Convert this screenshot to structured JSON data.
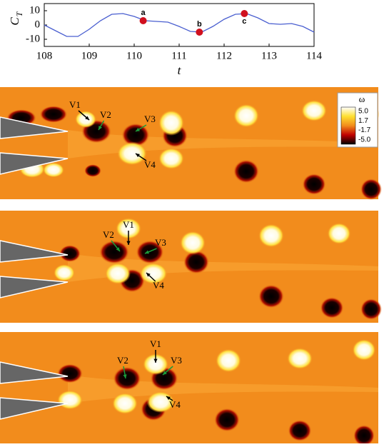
{
  "chart_data": {
    "type": "line",
    "ylabel": "C",
    "ylabel_subscript": "T",
    "xlabel": "t",
    "x": [
      108,
      108.25,
      108.5,
      108.75,
      109,
      109.25,
      109.5,
      109.75,
      110,
      110.25,
      110.5,
      110.75,
      111,
      111.25,
      111.5,
      111.75,
      112,
      112.25,
      112.5,
      112.75,
      113,
      113.25,
      113.5,
      113.75,
      114
    ],
    "values": [
      0,
      -4,
      -8,
      -8,
      -3,
      3,
      7.5,
      8,
      6,
      3,
      2.5,
      2,
      -1,
      -4.5,
      -5,
      -1,
      4,
      7.5,
      8,
      5,
      1,
      0.5,
      1,
      -1,
      -5
    ],
    "color": "#4a5fd0",
    "xlim": [
      108,
      114
    ],
    "ylim": [
      -15,
      15
    ],
    "xticks": [
      108,
      109,
      110,
      111,
      112,
      113,
      114
    ],
    "yticks": [
      -10,
      0,
      10
    ],
    "points": {
      "labels": [
        "a",
        "b",
        "c"
      ],
      "x": [
        110.2,
        111.45,
        112.45
      ],
      "values": [
        3,
        -5,
        8
      ],
      "color": "#d0101e"
    }
  },
  "colorbar": {
    "symbol": "ω",
    "labels": [
      "5.0",
      "1.7",
      "-1.7",
      "-5.0"
    ]
  },
  "panels": [
    {
      "labels": [
        "V1",
        "V2",
        "V3",
        "V4"
      ]
    },
    {
      "labels": [
        "V1",
        "V2",
        "V3",
        "V4"
      ]
    },
    {
      "labels": [
        "V1",
        "V2",
        "V3",
        "V4"
      ]
    }
  ]
}
